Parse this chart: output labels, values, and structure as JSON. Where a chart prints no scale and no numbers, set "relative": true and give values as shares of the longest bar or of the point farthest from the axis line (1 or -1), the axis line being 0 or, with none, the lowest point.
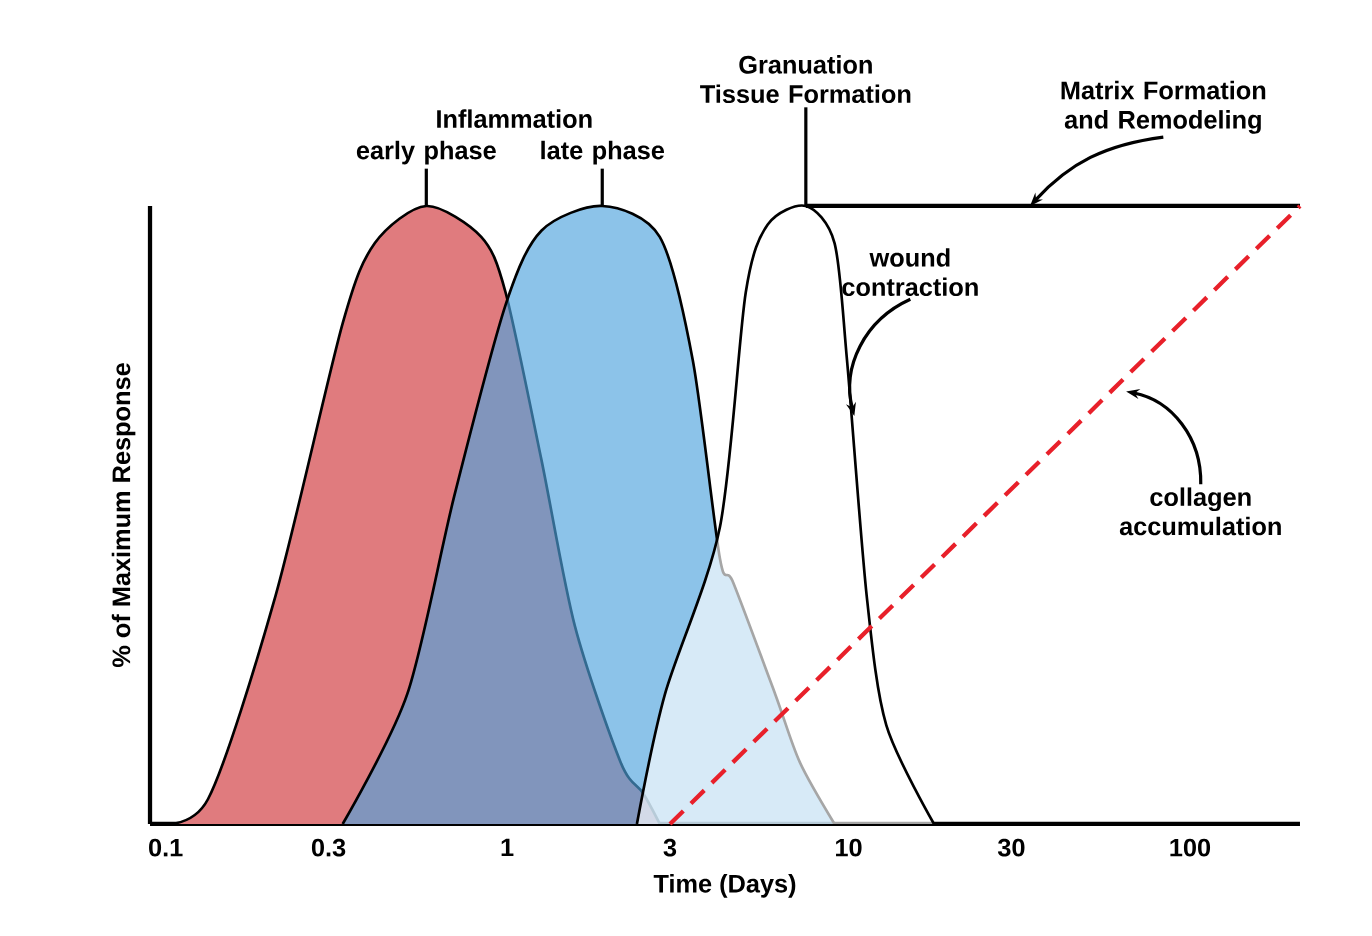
{
  "chart_data": {
    "type": "area",
    "relative": true,
    "log": "x",
    "tick_labels": "x",
    "marker": "none",
    "xlabel": "Time (Days)",
    "ylabel": "% of Maximum Response",
    "xlim": [
      0.09,
      210
    ],
    "xticks": [
      0.1,
      0.3,
      1,
      3,
      10,
      30,
      100
    ],
    "series": [
      {
        "color": "#e07b7e",
        "x": [
          0.093,
          0.133,
          0.21,
          0.33,
          0.41,
          0.58,
          0.84,
          0.99,
          1.26,
          1.58,
          2.15,
          2.5,
          2.8
        ],
        "values": [
          0,
          0.04,
          0.37,
          0.81,
          0.94,
          1,
          0.95,
          0.86,
          0.59,
          0.32,
          0.1,
          0.05,
          0
        ]
      },
      {
        "color": "#4fa3dd",
        "x": [
          0.33,
          0.51,
          0.7,
          0.99,
          1.26,
          1.9,
          2.8,
          3.5,
          4.2,
          4.6,
          6.1,
          7.2,
          9.1
        ],
        "values": [
          0,
          0.21,
          0.53,
          0.84,
          0.96,
          1,
          0.95,
          0.75,
          0.43,
          0.39,
          0.21,
          0.1,
          0
        ]
      },
      {
        "color": "#ffffff",
        "x": [
          2.4,
          2.9,
          4.2,
          5.0,
          5.8,
          7.5,
          9.1,
          9.9,
          11.3,
          12.9,
          17.8
        ],
        "values": [
          0,
          0.21,
          0.48,
          0.86,
          0.97,
          1,
          0.94,
          0.75,
          0.37,
          0.16,
          0
        ]
      },
      {
        "type": "line",
        "color": "#000000",
        "line_style": "solid",
        "x": [
          7.5,
          210
        ],
        "values": [
          1,
          1
        ]
      },
      {
        "type": "line",
        "color": "#e8202a",
        "line_style": "dashed",
        "x": [
          3.0,
          210
        ],
        "values": [
          0,
          1
        ]
      }
    ],
    "annotations": [
      "Inflammation",
      {
        "text": "early phase",
        "x": 0.58,
        "y": 1
      },
      {
        "text": "late phase",
        "x": 1.9,
        "y": 1
      },
      {
        "text": "Granuation Tissue Formation",
        "x": 7.5,
        "y": 1
      },
      {
        "text": "Matrix Formation and Remodeling",
        "x": 34,
        "y": 1
      },
      {
        "text": "wound contraction",
        "x": 10.4,
        "y": 0.66
      },
      {
        "text": "collagen accumulation",
        "x": 65,
        "y": 0.7
      }
    ]
  }
}
